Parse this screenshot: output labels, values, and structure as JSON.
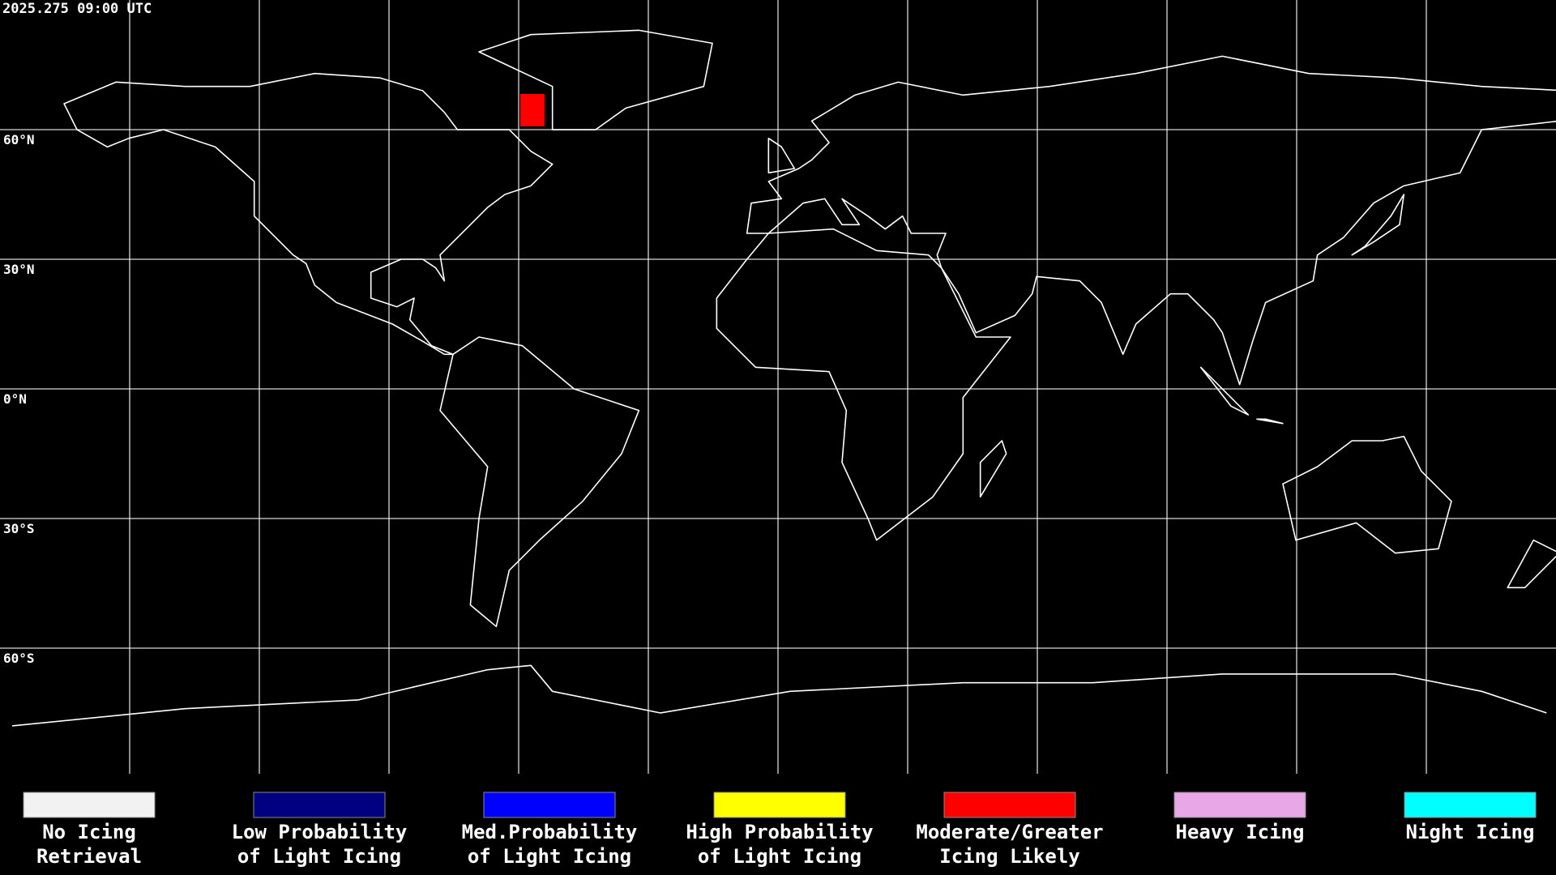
{
  "timestamp": "2025.275 09:00 UTC",
  "latitude_labels": [
    "60°N",
    "30°N",
    "0°N",
    "30°S",
    "60°S"
  ],
  "legend": [
    {
      "lines": [
        "No Icing",
        "Retrieval"
      ],
      "color": "#f2f2f2"
    },
    {
      "lines": [
        "Low Probability",
        "of Light Icing"
      ],
      "color": "#000080"
    },
    {
      "lines": [
        "Med.Probability",
        "of Light Icing"
      ],
      "color": "#0000ff"
    },
    {
      "lines": [
        "High Probability",
        "of Light Icing"
      ],
      "color": "#ffff00"
    },
    {
      "lines": [
        "Moderate/Greater",
        "Icing Likely"
      ],
      "color": "#ff0000"
    },
    {
      "lines": [
        "Heavy Icing"
      ],
      "color": "#e8a8e8"
    },
    {
      "lines": [
        "Night Icing"
      ],
      "color": "#00ffff"
    }
  ]
}
